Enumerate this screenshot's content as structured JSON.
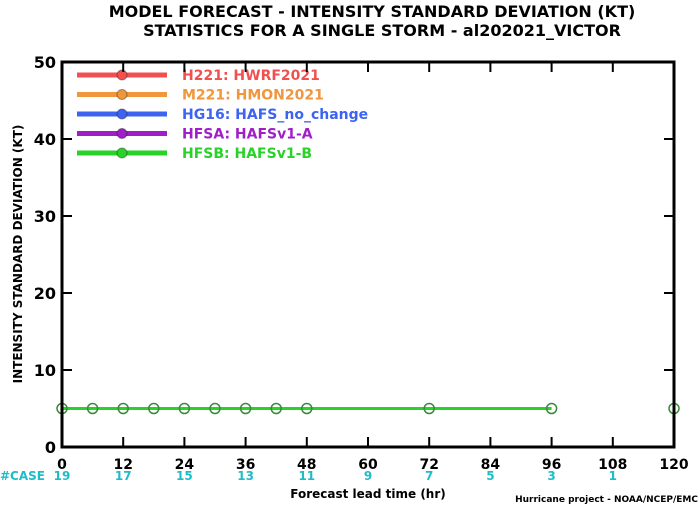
{
  "chart_data": {
    "type": "line",
    "title": "MODEL FORECAST - INTENSITY STANDARD DEVIATION (KT)",
    "subtitle": "STATISTICS FOR A SINGLE STORM - al202021_VICTOR",
    "xlabel": "Forecast lead time (hr)",
    "ylabel": "INTENSITY STANDARD DEVIATION (KT)",
    "xlim": [
      0,
      120
    ],
    "ylim": [
      0,
      50
    ],
    "x_ticks": [
      "0",
      "12",
      "24",
      "36",
      "48",
      "60",
      "72",
      "84",
      "96",
      "108",
      "120"
    ],
    "y_ticks": [
      "0",
      "10",
      "20",
      "30",
      "40",
      "50"
    ],
    "legend_position": "top-left",
    "series": [
      {
        "name": "H221: HWRF2021",
        "color": "#f05050"
      },
      {
        "name": "M221: HMON2021",
        "color": "#f0963c"
      },
      {
        "name": "HG16: HAFS_no_change",
        "color": "#3c64f0"
      },
      {
        "name": "HFSA: HAFSv1-A",
        "color": "#a01ec8"
      },
      {
        "name": "HFSB: HAFSv1-B",
        "color": "#28d228",
        "x": [
          0,
          6,
          12,
          18,
          24,
          30,
          36,
          42,
          48,
          72,
          96
        ],
        "y": [
          5,
          5,
          5,
          5,
          5,
          5,
          5,
          5,
          5,
          5,
          5
        ]
      }
    ],
    "extra_markers": [
      {
        "x": 120,
        "y": 5,
        "color": "#28d228"
      }
    ],
    "case_label": "#CASE",
    "cases": [
      {
        "x": 0,
        "label": "19"
      },
      {
        "x": 12,
        "label": "17"
      },
      {
        "x": 24,
        "label": "15"
      },
      {
        "x": 36,
        "label": "13"
      },
      {
        "x": 48,
        "label": "11"
      },
      {
        "x": 60,
        "label": "9"
      },
      {
        "x": 72,
        "label": "7"
      },
      {
        "x": 84,
        "label": "5"
      },
      {
        "x": 96,
        "label": "3"
      },
      {
        "x": 108,
        "label": "1"
      }
    ],
    "credit": "Hurricane project - NOAA/NCEP/EMC"
  }
}
